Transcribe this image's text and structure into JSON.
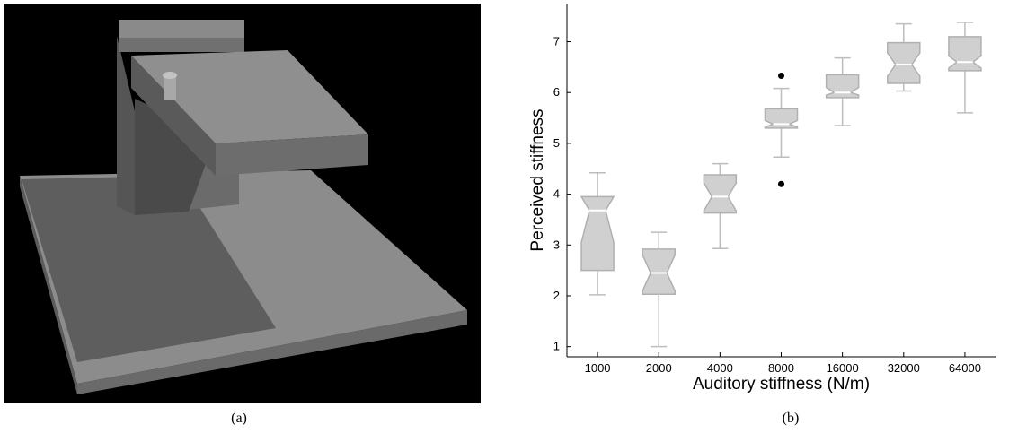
{
  "panels": {
    "left_caption": "(a)",
    "right_caption": "(b)"
  },
  "chart_data": {
    "type": "boxplot",
    "notched": true,
    "xlabel": "Auditory stiffness (N/m)",
    "ylabel": "Perceived stiffness",
    "categories": [
      "1000",
      "2000",
      "4000",
      "8000",
      "16000",
      "32000",
      "64000"
    ],
    "yticks": [
      1,
      2,
      3,
      4,
      5,
      6,
      7
    ],
    "ylim": [
      0.8,
      7.75
    ],
    "boxes": [
      {
        "category": "1000",
        "whisker_low": 2.02,
        "q1": 2.5,
        "median": 3.68,
        "q3": 3.95,
        "whisker_high": 4.42,
        "notch_low": 3.05,
        "notch_high": 3.95,
        "outliers": []
      },
      {
        "category": "2000",
        "whisker_low": 1.0,
        "q1": 2.03,
        "median": 2.45,
        "q3": 2.92,
        "whisker_high": 3.25,
        "notch_low": 2.1,
        "notch_high": 2.8,
        "outliers": []
      },
      {
        "category": "4000",
        "whisker_low": 2.93,
        "q1": 3.63,
        "median": 3.95,
        "q3": 4.38,
        "whisker_high": 4.6,
        "notch_low": 3.67,
        "notch_high": 4.22,
        "outliers": []
      },
      {
        "category": "8000",
        "whisker_low": 4.73,
        "q1": 5.3,
        "median": 5.38,
        "q3": 5.68,
        "whisker_high": 6.08,
        "notch_low": 5.32,
        "notch_high": 5.45,
        "outliers": [
          6.33,
          4.2
        ]
      },
      {
        "category": "16000",
        "whisker_low": 5.35,
        "q1": 5.9,
        "median": 6.0,
        "q3": 6.35,
        "whisker_high": 6.68,
        "notch_low": 5.95,
        "notch_high": 6.1,
        "outliers": []
      },
      {
        "category": "32000",
        "whisker_low": 6.03,
        "q1": 6.18,
        "median": 6.55,
        "q3": 6.98,
        "whisker_high": 7.35,
        "notch_low": 6.32,
        "notch_high": 6.78,
        "outliers": []
      },
      {
        "category": "64000",
        "whisker_low": 5.6,
        "q1": 6.43,
        "median": 6.6,
        "q3": 7.1,
        "whisker_high": 7.38,
        "notch_low": 6.48,
        "notch_high": 6.72,
        "outliers": []
      }
    ],
    "colors": {
      "box_fill": "#d0d0d0",
      "box_stroke": "#b0b0b0",
      "whisker": "#bdbdbd",
      "median": "#ffffff",
      "outlier": "#000000"
    }
  }
}
